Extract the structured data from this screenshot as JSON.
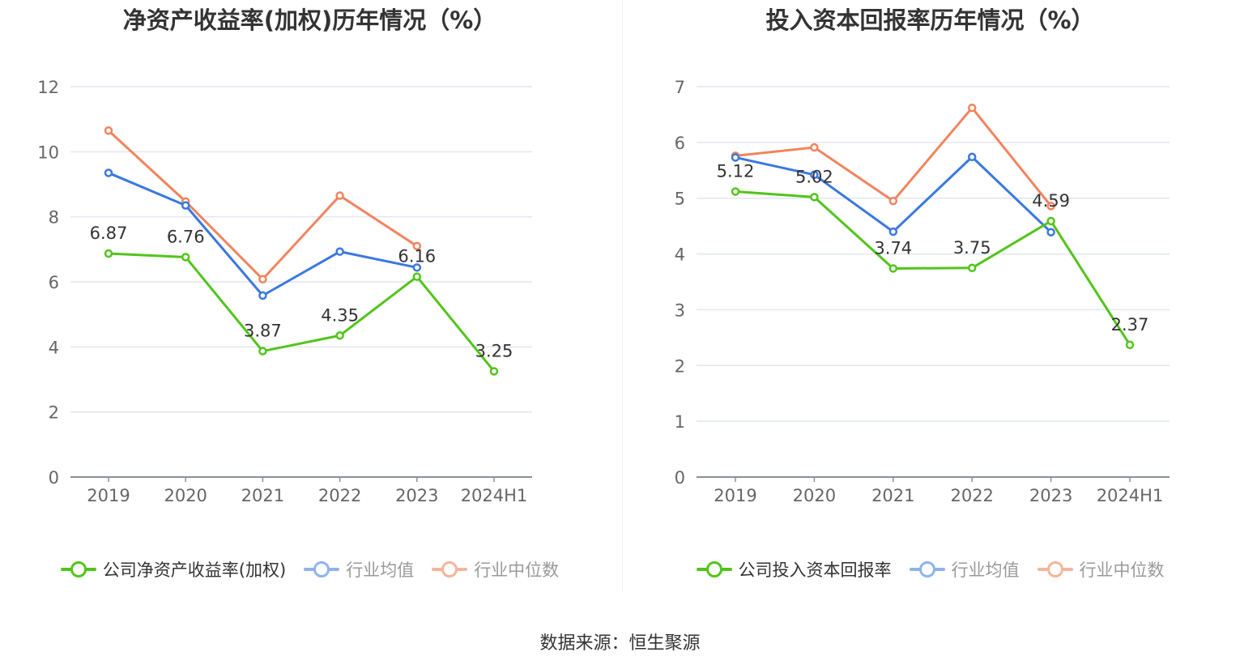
{
  "source_text": "数据来源：恒生聚源",
  "colors": {
    "company": "#52c41a",
    "avg": "#3a78e0",
    "median": "#f0845e",
    "grid": "#e3e6ef",
    "axis": "#8a8f99",
    "tick": "#666666"
  },
  "chart_data": [
    {
      "type": "line",
      "title": "净资产收益率(加权)历年情况（%）",
      "categories": [
        "2019",
        "2020",
        "2021",
        "2022",
        "2023",
        "2024H1"
      ],
      "ylim": [
        0,
        12
      ],
      "yticks": [
        0,
        2,
        4,
        6,
        8,
        10,
        12
      ],
      "grid": true,
      "legend_position": "bottom",
      "series": [
        {
          "name": "公司净资产收益率(加权)",
          "key": "company",
          "values": [
            6.87,
            6.76,
            3.87,
            4.35,
            6.16,
            3.25
          ],
          "labels": [
            "6.87",
            "6.76",
            "3.87",
            "4.35",
            "6.16",
            "3.25"
          ]
        },
        {
          "name": "行业均值",
          "key": "avg",
          "values": [
            9.35,
            8.35,
            5.58,
            6.93,
            6.44,
            null
          ]
        },
        {
          "name": "行业中位数",
          "key": "median",
          "values": [
            10.65,
            8.47,
            6.08,
            8.65,
            7.1,
            null
          ]
        }
      ]
    },
    {
      "type": "line",
      "title": "投入资本回报率历年情况（%）",
      "categories": [
        "2019",
        "2020",
        "2021",
        "2022",
        "2023",
        "2024H1"
      ],
      "ylim": [
        0,
        7
      ],
      "yticks": [
        0,
        1,
        2,
        3,
        4,
        5,
        6,
        7
      ],
      "grid": true,
      "legend_position": "bottom",
      "series": [
        {
          "name": "公司投入资本回报率",
          "key": "company",
          "values": [
            5.12,
            5.02,
            3.74,
            3.75,
            4.59,
            2.37
          ],
          "labels": [
            "5.12",
            "5.02",
            "3.74",
            "3.75",
            "4.59",
            "2.37"
          ]
        },
        {
          "name": "行业均值",
          "key": "avg",
          "values": [
            5.73,
            5.42,
            4.4,
            5.74,
            4.39,
            null
          ]
        },
        {
          "name": "行业中位数",
          "key": "median",
          "values": [
            5.76,
            5.91,
            4.95,
            6.62,
            4.86,
            null
          ]
        }
      ]
    }
  ]
}
